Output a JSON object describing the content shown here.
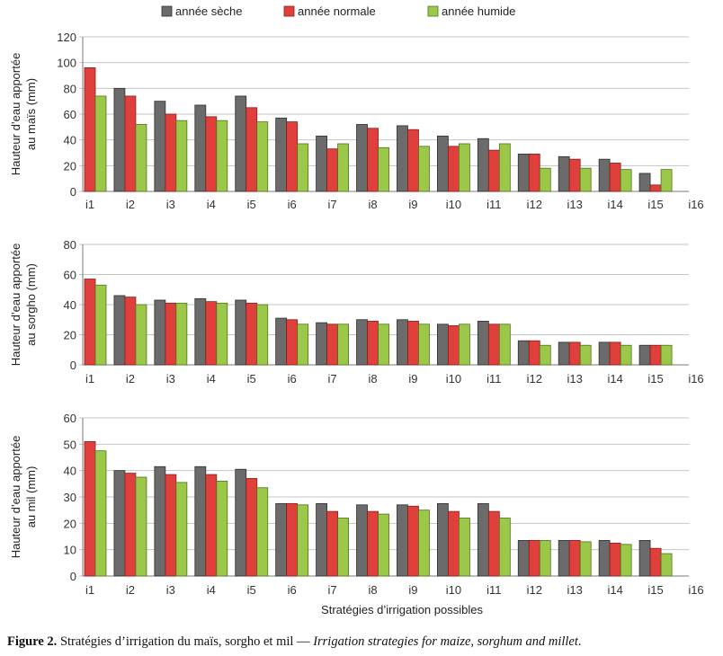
{
  "chart_data": [
    {
      "type": "bar",
      "ylabel": "Hauteur d'eau apportée au maïs (mm)",
      "ylabel_lines": [
        "Hauteur d’eau apportée",
        "au maïs (mm)"
      ],
      "ylim": [
        0,
        120
      ],
      "yticks": [
        0,
        20,
        40,
        60,
        80,
        100,
        120
      ],
      "categories": [
        "i1",
        "i2",
        "i3",
        "i4",
        "i5",
        "i6",
        "i7",
        "i8",
        "i9",
        "i10",
        "i11",
        "i12",
        "i13",
        "i14",
        "i15",
        "i16"
      ],
      "series": [
        {
          "name": "année sèche",
          "values": [
            0,
            80,
            70,
            67,
            74,
            57,
            43,
            52,
            51,
            43,
            41,
            29,
            27,
            25,
            14,
            0
          ]
        },
        {
          "name": "année normale",
          "values": [
            96,
            74,
            60,
            58,
            65,
            54,
            33,
            49,
            48,
            35,
            32,
            29,
            25,
            22,
            5,
            0
          ]
        },
        {
          "name": "année humide",
          "values": [
            74,
            52,
            55,
            55,
            54,
            37,
            37,
            34,
            35,
            37,
            37,
            18,
            18,
            17,
            17,
            0
          ]
        }
      ]
    },
    {
      "type": "bar",
      "ylabel": "Hauteur d'eau apportée au sorgho (mm)",
      "ylabel_lines": [
        "Hauteur d’eau apportée",
        "au sorgho (mm)"
      ],
      "ylim": [
        0,
        80
      ],
      "yticks": [
        0,
        20,
        40,
        60,
        80
      ],
      "categories": [
        "i1",
        "i2",
        "i3",
        "i4",
        "i5",
        "i6",
        "i7",
        "i8",
        "i9",
        "i10",
        "i11",
        "i12",
        "i13",
        "i14",
        "i15",
        "i16"
      ],
      "series": [
        {
          "name": "année sèche",
          "values": [
            0,
            46,
            43,
            44,
            43,
            31,
            28,
            30,
            30,
            27,
            29,
            16,
            15,
            15,
            13,
            0
          ]
        },
        {
          "name": "année normale",
          "values": [
            57,
            45,
            41,
            42,
            41,
            30,
            27,
            29,
            29,
            26,
            27,
            16,
            15,
            15,
            13,
            0
          ]
        },
        {
          "name": "année humide",
          "values": [
            53,
            40,
            41,
            41,
            40,
            27,
            27,
            27,
            27,
            27,
            27,
            13,
            13,
            13,
            13,
            0
          ]
        }
      ]
    },
    {
      "type": "bar",
      "ylabel": "Hauteur d'eau apportée au mil (mm)",
      "ylabel_lines": [
        "Hauteur d’eau apportée",
        "au mil (mm)"
      ],
      "xlabel": "Stratégies d'irrigation possibles",
      "ylim": [
        0,
        60
      ],
      "yticks": [
        0,
        10,
        20,
        30,
        40,
        50,
        60
      ],
      "categories": [
        "i1",
        "i2",
        "i3",
        "i4",
        "i5",
        "i6",
        "i7",
        "i8",
        "i9",
        "i10",
        "i11",
        "i12",
        "i13",
        "i14",
        "i15",
        "i16"
      ],
      "series": [
        {
          "name": "année sèche",
          "values": [
            0,
            40,
            41.5,
            41.5,
            40.5,
            27.5,
            27.5,
            27,
            27,
            27.5,
            27.5,
            13.5,
            13.5,
            13.5,
            13.5,
            0
          ]
        },
        {
          "name": "année normale",
          "values": [
            51,
            39,
            38.5,
            38.5,
            37,
            27.5,
            24.5,
            24.5,
            26.5,
            24.5,
            24.5,
            13.5,
            13.5,
            12.5,
            10.5,
            0
          ]
        },
        {
          "name": "année humide",
          "values": [
            47.5,
            37.5,
            35.5,
            36,
            33.5,
            27,
            22,
            23.5,
            25,
            22,
            22,
            13.5,
            13,
            12,
            8.5,
            0
          ]
        }
      ]
    }
  ],
  "legend": {
    "position": "top",
    "entries": [
      {
        "label": "année sèche",
        "color": "#6b6b6b"
      },
      {
        "label": "année normale",
        "color": "#e0403c"
      },
      {
        "label": "année humide",
        "color": "#9cc84a"
      }
    ]
  },
  "xlabel": "Stratégies d’irrigation possibles",
  "caption": {
    "figure": "Figure 2.",
    "french": " Stratégies d’irrigation du maïs, sorgho et mil — ",
    "english": "Irrigation strategies for maize, sorghum and millet",
    "end": "."
  }
}
